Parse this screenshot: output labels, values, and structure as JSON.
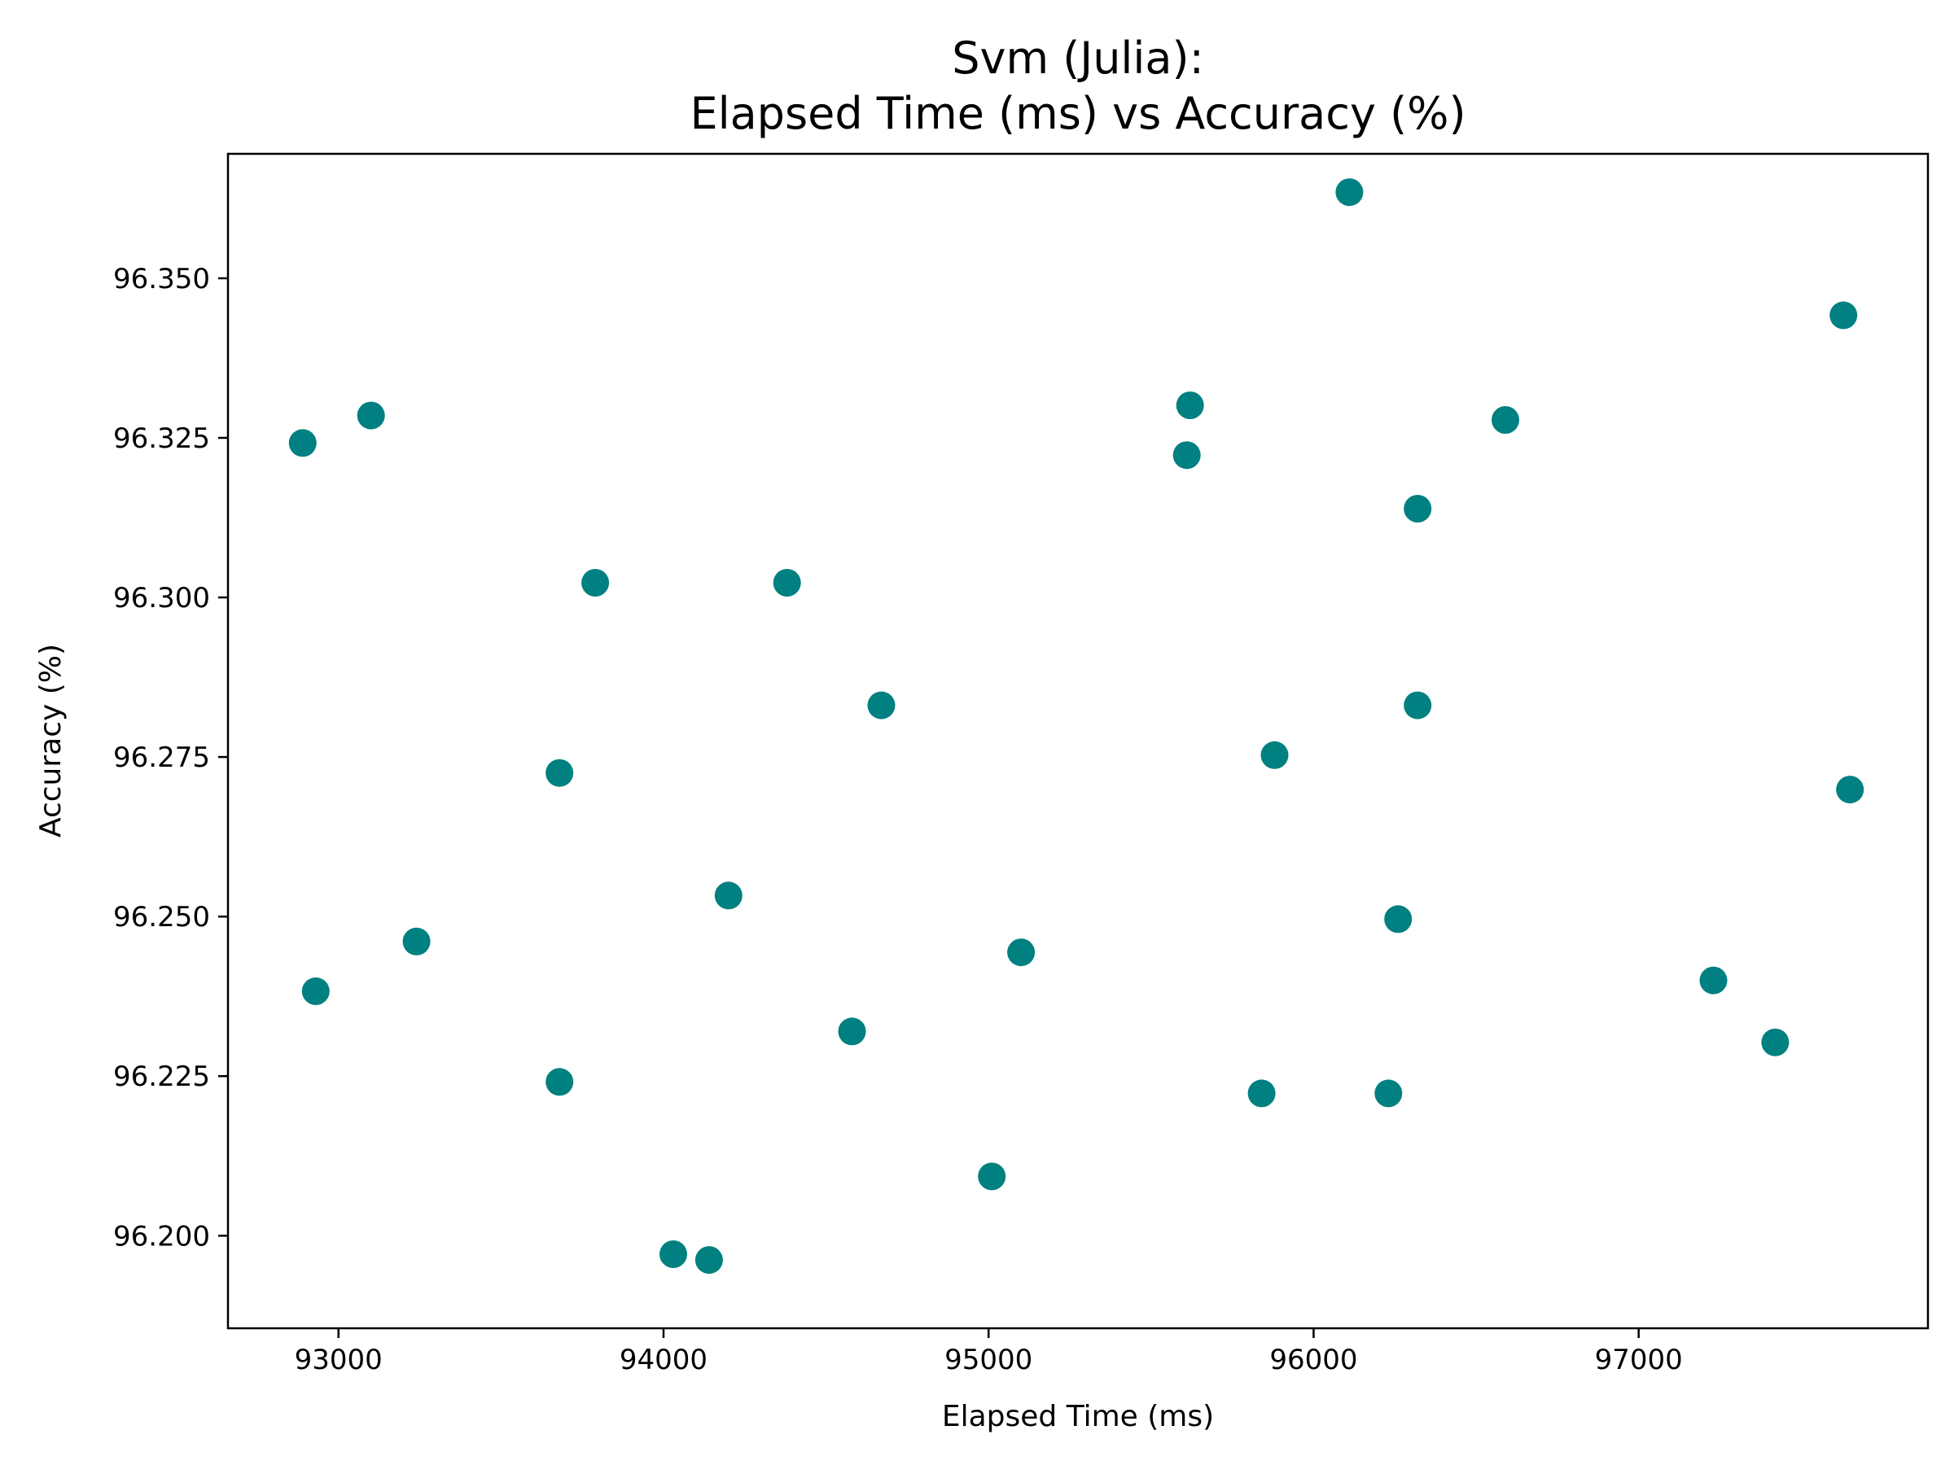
{
  "chart_data": {
    "type": "scatter",
    "title": [
      "Svm (Julia):",
      "Elapsed Time (ms) vs Accuracy (%)"
    ],
    "xlabel": "Elapsed Time (ms)",
    "ylabel": "Accuracy (%)",
    "xlim": [
      92660,
      97890
    ],
    "ylim": [
      96.1855,
      96.3695
    ],
    "xticks": [
      93000,
      94000,
      95000,
      96000,
      97000
    ],
    "xtick_labels": [
      "93000",
      "94000",
      "95000",
      "96000",
      "97000"
    ],
    "yticks": [
      96.2,
      96.225,
      96.25,
      96.275,
      96.3,
      96.325,
      96.35
    ],
    "ytick_labels": [
      "96.200",
      "96.225",
      "96.250",
      "96.275",
      "96.300",
      "96.325",
      "96.350"
    ],
    "grid": false,
    "marker_color": "#008080",
    "points": [
      {
        "x": 96110,
        "y": 96.3635
      },
      {
        "x": 97630,
        "y": 96.3442
      },
      {
        "x": 95620,
        "y": 96.3301
      },
      {
        "x": 93100,
        "y": 96.3285
      },
      {
        "x": 96590,
        "y": 96.3278
      },
      {
        "x": 92890,
        "y": 96.3242
      },
      {
        "x": 95610,
        "y": 96.3223
      },
      {
        "x": 96320,
        "y": 96.3139
      },
      {
        "x": 93790,
        "y": 96.3023
      },
      {
        "x": 94380,
        "y": 96.3023
      },
      {
        "x": 94670,
        "y": 96.2831
      },
      {
        "x": 96320,
        "y": 96.2831
      },
      {
        "x": 95880,
        "y": 96.2753
      },
      {
        "x": 93680,
        "y": 96.2725
      },
      {
        "x": 97650,
        "y": 96.2699
      },
      {
        "x": 94200,
        "y": 96.2533
      },
      {
        "x": 96260,
        "y": 96.2496
      },
      {
        "x": 93240,
        "y": 96.2461
      },
      {
        "x": 95100,
        "y": 96.2444
      },
      {
        "x": 92930,
        "y": 96.2383
      },
      {
        "x": 97230,
        "y": 96.24
      },
      {
        "x": 94580,
        "y": 96.232
      },
      {
        "x": 97420,
        "y": 96.2303
      },
      {
        "x": 93680,
        "y": 96.2241
      },
      {
        "x": 95840,
        "y": 96.2223
      },
      {
        "x": 96230,
        "y": 96.2223
      },
      {
        "x": 95010,
        "y": 96.2093
      },
      {
        "x": 94030,
        "y": 96.1971
      },
      {
        "x": 94140,
        "y": 96.1962
      }
    ]
  }
}
